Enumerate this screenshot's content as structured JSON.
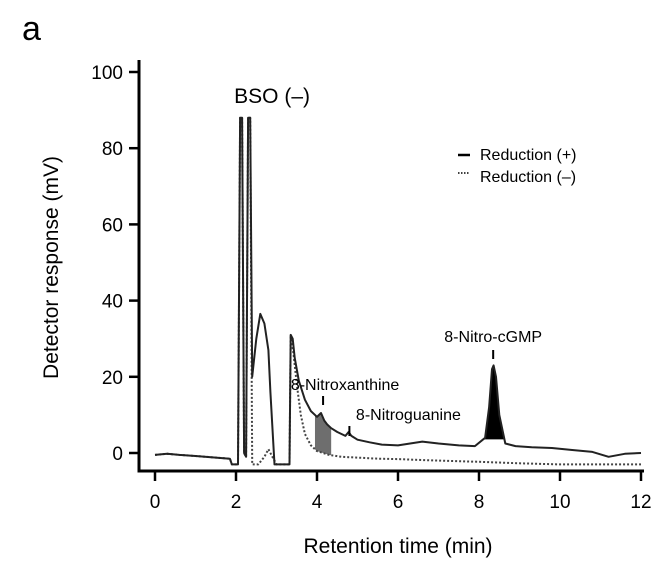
{
  "panel_label": "a",
  "chart_data": {
    "type": "line",
    "title": "",
    "xlabel": "Retention time (min)",
    "ylabel": "Detector response (mV)",
    "xlim": [
      0,
      12
    ],
    "ylim": [
      -3,
      100
    ],
    "x_ticks": [
      0,
      2,
      4,
      6,
      8,
      10,
      12
    ],
    "y_ticks": [
      0,
      20,
      40,
      60,
      80,
      100
    ],
    "legend": {
      "position": "top-right",
      "entries": [
        "Reduction (+)",
        "Reduction (–)"
      ]
    },
    "annotations": [
      {
        "text": "BSO (–)",
        "x": 2.2,
        "y": 95
      },
      {
        "text": "8-Nitroxanthine",
        "x": 4.15,
        "y": 4.0
      },
      {
        "text": "8-Nitroguanine",
        "x": 4.8,
        "y": 3.0
      },
      {
        "text": "8-Nitro-cGMP",
        "x": 8.35,
        "y": 23.0
      }
    ],
    "series": [
      {
        "name": "Reduction (+)",
        "style": "solid",
        "x": [
          0,
          0.3,
          0.6,
          1.0,
          1.5,
          1.85,
          1.9,
          2.05,
          2.1,
          2.15,
          2.2,
          2.25,
          2.3,
          2.35,
          2.4,
          2.5,
          2.6,
          2.7,
          2.8,
          2.85,
          2.95,
          3.05,
          3.2,
          3.32,
          3.35,
          3.4,
          3.45,
          3.55,
          3.7,
          3.85,
          4.0,
          4.1,
          4.18,
          4.25,
          4.35,
          4.5,
          4.7,
          4.78,
          4.85,
          5.0,
          5.3,
          5.6,
          6.0,
          6.3,
          6.6,
          7.0,
          7.5,
          7.9,
          8.15,
          8.25,
          8.32,
          8.36,
          8.42,
          8.5,
          8.65,
          8.9,
          9.3,
          9.8,
          10.3,
          10.8,
          11.2,
          11.6,
          12.0
        ],
        "y": [
          -0.5,
          -0.2,
          -0.5,
          -0.8,
          -1.2,
          -1.5,
          -3.5,
          -3.5,
          88,
          88,
          0,
          -1,
          88,
          88,
          20,
          30,
          36.5,
          34,
          27,
          16,
          -4,
          -4,
          -4,
          -4,
          31,
          30,
          25,
          19,
          14,
          11,
          9.5,
          10.5,
          8.5,
          7.5,
          6.5,
          5.5,
          4.5,
          5.5,
          4.5,
          3.5,
          2.8,
          2.2,
          2.0,
          2.5,
          3.0,
          2.5,
          2.0,
          1.8,
          4.0,
          12,
          22,
          23,
          20,
          10,
          2.5,
          1.8,
          1.5,
          1.3,
          0.8,
          0.3,
          -1.0,
          -0.2,
          0.0
        ]
      },
      {
        "name": "Reduction (–)",
        "style": "dotted",
        "x": [
          0,
          0.3,
          0.6,
          1.0,
          1.5,
          1.85,
          1.9,
          2.05,
          2.1,
          2.15,
          2.2,
          2.25,
          2.3,
          2.35,
          2.4,
          2.55,
          2.7,
          2.8,
          2.9,
          3.0,
          3.2,
          3.32,
          3.35,
          3.42,
          3.5,
          3.6,
          3.7,
          3.85,
          4.0,
          4.3,
          4.6,
          5.0,
          5.5,
          6.0,
          6.5,
          7.0,
          8.0,
          9.0,
          10.0,
          11.0,
          12.0
        ],
        "y": [
          -0.5,
          -0.2,
          -0.5,
          -0.8,
          -1.2,
          -1.5,
          -3.5,
          -3.5,
          88,
          88,
          0,
          -1,
          88,
          88,
          -4,
          -4,
          -1,
          1,
          -1,
          -4,
          -4,
          -4,
          31,
          26,
          18,
          10,
          5,
          2,
          0.5,
          -0.5,
          -1.0,
          -1.2,
          -1.5,
          -1.6,
          -1.8,
          -2.0,
          -2.3,
          -2.7,
          -3.0,
          -3.3,
          -3.6
        ]
      }
    ],
    "filled_peaks": [
      {
        "label": "8-Nitroxanthine",
        "x_range": [
          3.95,
          4.35
        ]
      },
      {
        "label": "8-Nitro-cGMP",
        "x_range": [
          8.1,
          8.62
        ]
      }
    ]
  }
}
